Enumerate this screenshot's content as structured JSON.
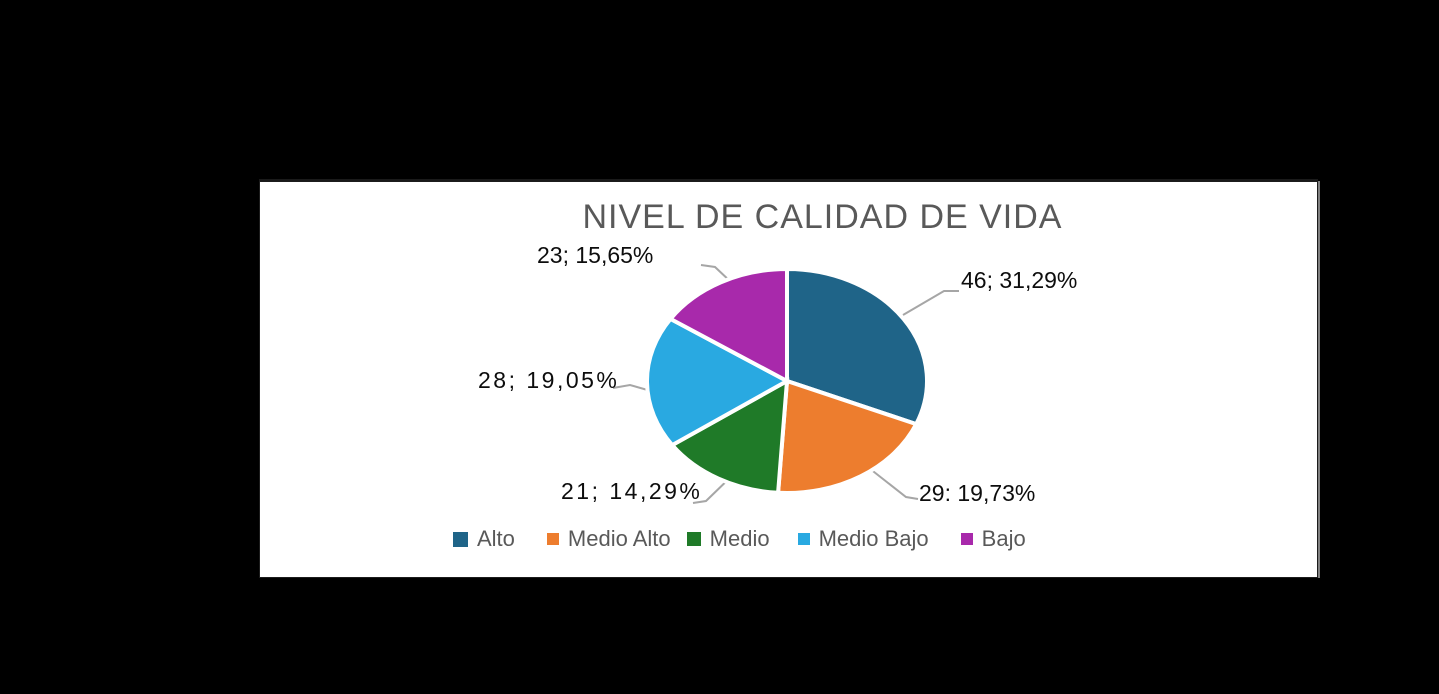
{
  "background_color": "#000000",
  "panel": {
    "background_color": "#ffffff",
    "border_color": "#1c1c1c"
  },
  "chart_data": {
    "type": "pie",
    "title": "NIVEL DE CALIDAD DE VIDA",
    "title_color": "#595959",
    "legend_position": "bottom",
    "start_angle_deg": 0,
    "direction": "clockwise",
    "grid": false,
    "slices": [
      {
        "name": "Alto",
        "value": 46,
        "pct": 31.29,
        "label": "46; 31,29%",
        "color": "#1F6488"
      },
      {
        "name": "Medio Alto",
        "value": 29,
        "pct": 19.73,
        "label": "29: 19,73%",
        "color": "#ED7D2E"
      },
      {
        "name": "Medio",
        "value": 21,
        "pct": 14.29,
        "label": "21; 14,29%",
        "color": "#1F7A28"
      },
      {
        "name": "Medio Bajo",
        "value": 28,
        "pct": 19.05,
        "label": "28; 19,05%",
        "color": "#29A9E1"
      },
      {
        "name": "Bajo",
        "value": 23,
        "pct": 15.65,
        "label": "23; 15,65%",
        "color": "#A829AB"
      }
    ],
    "label_color": "#0d0d0d",
    "leader_line_color": "#A6A6A6",
    "slice_separator_color": "#ffffff",
    "legend_text_color": "#595959"
  }
}
